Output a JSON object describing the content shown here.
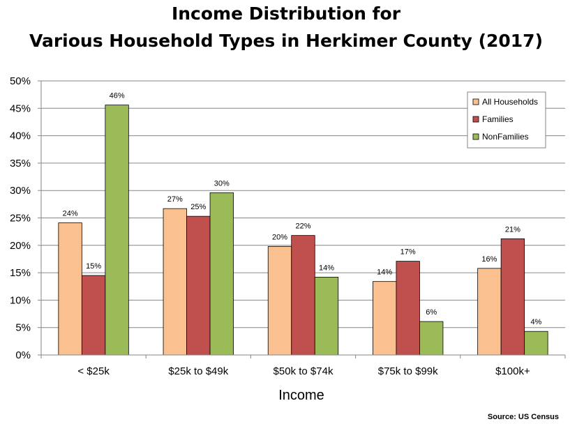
{
  "chart_data": {
    "type": "bar",
    "title_lines": [
      "Income Distribution for",
      "Various Household Types in Herkimer County (2017)"
    ],
    "xlabel": "Income",
    "ylabel": "",
    "categories": [
      "< $25k",
      "$25k to $49k",
      "$50k to $74k",
      "$75k to $99k",
      "$100k+"
    ],
    "series": [
      {
        "name": "All Households",
        "color": "#FAC090",
        "values": [
          0.241,
          0.267,
          0.198,
          0.134,
          0.158
        ],
        "labels": [
          "24%",
          "27%",
          "20%",
          "14%",
          "16%"
        ]
      },
      {
        "name": "Families",
        "color": "#C0504D",
        "values": [
          0.145,
          0.253,
          0.218,
          0.171,
          0.212
        ],
        "labels": [
          "15%",
          "25%",
          "22%",
          "17%",
          "21%"
        ]
      },
      {
        "name": "NonFamilies",
        "color": "#9BBB59",
        "values": [
          0.456,
          0.296,
          0.142,
          0.061,
          0.043
        ],
        "labels": [
          "46%",
          "30%",
          "14%",
          "6%",
          "4%"
        ]
      }
    ],
    "ylim": [
      0,
      0.5
    ],
    "yticks": [
      0,
      0.05,
      0.1,
      0.15,
      0.2,
      0.25,
      0.3,
      0.35,
      0.4,
      0.45,
      0.5
    ],
    "ytick_labels": [
      "0%",
      "5%",
      "10%",
      "15%",
      "20%",
      "25%",
      "30%",
      "35%",
      "40%",
      "45%",
      "50%"
    ],
    "grid": true,
    "legend_position": "top-right",
    "source": "Source: US Census"
  }
}
